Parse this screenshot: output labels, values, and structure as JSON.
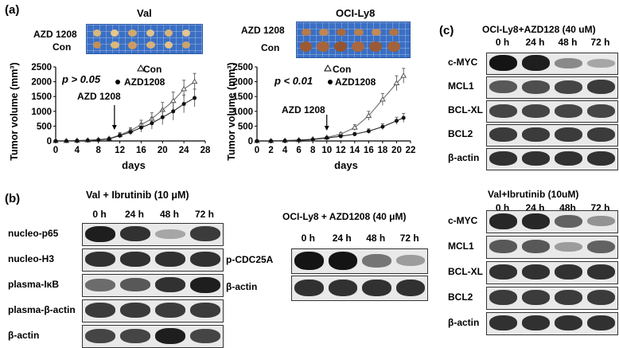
{
  "panel_labels": {
    "a": "(a)",
    "b": "(b)",
    "c": "(c)"
  },
  "panel_a": {
    "charts": [
      {
        "cell_line": "Val",
        "photo_labels": [
          "AZD 1208",
          "Con"
        ],
        "pvalue_text": "p > 0.05",
        "legend": [
          "Con",
          "AZD1208"
        ],
        "annotation": "AZD 1208",
        "ylabel": "Tumor volume (mm³)",
        "xlabel": "days"
      },
      {
        "cell_line": "OCI-Ly8",
        "photo_labels": [
          "AZD 1208",
          "Con"
        ],
        "pvalue_text": "p < 0.01",
        "legend": [
          "Con",
          "AZD1208"
        ],
        "annotation": "AZD 1208",
        "ylabel": "Tumor volume (mm³)",
        "xlabel": "days"
      }
    ]
  },
  "chart_data": [
    {
      "type": "line",
      "title": "Val",
      "xlabel": "days",
      "ylabel": "Tumor volume (mm³)",
      "x_ticks": [
        0,
        4,
        8,
        12,
        16,
        20,
        24,
        28
      ],
      "y_ticks": [
        0,
        500,
        1000,
        1500,
        2000,
        2500
      ],
      "xlim": [
        0,
        28
      ],
      "ylim": [
        0,
        2500
      ],
      "annotation": {
        "text": "AZD 1208",
        "x": 11
      },
      "series": [
        {
          "name": "Con",
          "marker": "triangle-open",
          "x": [
            0,
            2,
            4,
            6,
            8,
            10,
            12,
            14,
            16,
            18,
            20,
            22,
            24,
            26
          ],
          "y": [
            0,
            0,
            10,
            20,
            40,
            80,
            200,
            350,
            550,
            750,
            1050,
            1350,
            1750,
            2000
          ],
          "err": [
            0,
            0,
            5,
            10,
            15,
            30,
            80,
            100,
            150,
            200,
            250,
            300,
            300,
            280
          ]
        },
        {
          "name": "AZD1208",
          "marker": "circle-filled",
          "x": [
            0,
            2,
            4,
            6,
            8,
            10,
            12,
            14,
            16,
            18,
            20,
            22,
            24,
            26
          ],
          "y": [
            0,
            0,
            10,
            20,
            35,
            70,
            180,
            300,
            450,
            600,
            800,
            1000,
            1250,
            1450
          ],
          "err": [
            0,
            0,
            5,
            10,
            15,
            30,
            80,
            100,
            150,
            200,
            250,
            300,
            300,
            300
          ]
        }
      ]
    },
    {
      "type": "line",
      "title": "OCI-Ly8",
      "xlabel": "days",
      "ylabel": "Tumor volume (mm³)",
      "x_ticks": [
        0,
        2,
        4,
        6,
        8,
        10,
        12,
        14,
        16,
        18,
        20,
        22
      ],
      "y_ticks": [
        0,
        500,
        1000,
        1500,
        2000,
        2500
      ],
      "xlim": [
        0,
        22
      ],
      "ylim": [
        0,
        2500
      ],
      "annotation": {
        "text": "AZD 1208",
        "x": 10
      },
      "series": [
        {
          "name": "Con",
          "marker": "triangle-open",
          "x": [
            0,
            2,
            4,
            6,
            8,
            10,
            12,
            14,
            16,
            18,
            20,
            21
          ],
          "y": [
            0,
            0,
            10,
            30,
            60,
            120,
            230,
            450,
            850,
            1400,
            1950,
            2200
          ],
          "err": [
            0,
            0,
            5,
            10,
            20,
            30,
            50,
            100,
            150,
            200,
            250,
            250
          ]
        },
        {
          "name": "AZD1208",
          "marker": "circle-filled",
          "x": [
            0,
            2,
            4,
            6,
            8,
            10,
            12,
            14,
            16,
            18,
            20,
            21
          ],
          "y": [
            0,
            0,
            10,
            25,
            50,
            100,
            160,
            230,
            330,
            480,
            680,
            780
          ],
          "err": [
            0,
            0,
            5,
            10,
            20,
            30,
            40,
            60,
            80,
            100,
            120,
            150
          ]
        }
      ]
    }
  ],
  "panel_b": {
    "left": {
      "title": "Val + Ibrutinib (10 μM)",
      "timepoints": [
        "0 h",
        "24 h",
        "48 h",
        "72 h"
      ],
      "rows": [
        {
          "label": "nucleo-p65",
          "intensity": [
            0.9,
            0.8,
            0.2,
            0.75
          ]
        },
        {
          "label": "nucleo-H3",
          "intensity": [
            0.8,
            0.8,
            0.8,
            0.8
          ]
        },
        {
          "label": "plasma-IκB",
          "intensity": [
            0.5,
            0.6,
            0.8,
            0.9
          ]
        },
        {
          "label": "plasma-β-actin",
          "intensity": [
            0.75,
            0.75,
            0.75,
            0.75
          ]
        },
        {
          "label": "β-actin",
          "intensity": [
            0.7,
            0.7,
            0.9,
            0.7
          ]
        }
      ]
    },
    "middle": {
      "title": "OCI-Ly8 + AZD1208 (40 μM)",
      "timepoints": [
        "0 h",
        "24 h",
        "48 h",
        "72 h"
      ],
      "rows": [
        {
          "label": "p-CDC25A",
          "intensity": [
            0.95,
            0.95,
            0.45,
            0.25
          ]
        },
        {
          "label": "β-actin",
          "intensity": [
            0.8,
            0.8,
            0.8,
            0.8
          ]
        }
      ]
    }
  },
  "panel_c": {
    "top": {
      "title": "OCI-Ly8+AZD128 (40 uM)",
      "timepoints": [
        "0 h",
        "24 h",
        "48 h",
        "72 h"
      ],
      "rows": [
        {
          "label": "c-MYC",
          "intensity": [
            0.95,
            0.9,
            0.35,
            0.2
          ]
        },
        {
          "label": "MCL1",
          "intensity": [
            0.6,
            0.65,
            0.7,
            0.75
          ]
        },
        {
          "label": "BCL-XL",
          "intensity": [
            0.7,
            0.7,
            0.7,
            0.7
          ]
        },
        {
          "label": "BCL2",
          "intensity": [
            0.75,
            0.75,
            0.75,
            0.75
          ]
        },
        {
          "label": "β-actin",
          "intensity": [
            0.8,
            0.8,
            0.8,
            0.8
          ]
        }
      ]
    },
    "bottom": {
      "title": "Val+Ibrutinib (10uM)",
      "timepoints": [
        "0 h",
        "24 h",
        "48h",
        "72 h"
      ],
      "rows": [
        {
          "label": "c-MYC",
          "intensity": [
            0.85,
            0.85,
            0.55,
            0.3
          ]
        },
        {
          "label": "MCL1",
          "intensity": [
            0.6,
            0.6,
            0.25,
            0.55
          ]
        },
        {
          "label": "BCL-XL",
          "intensity": [
            0.8,
            0.8,
            0.8,
            0.8
          ]
        },
        {
          "label": "BCL2",
          "intensity": [
            0.75,
            0.75,
            0.75,
            0.75
          ]
        },
        {
          "label": "β-actin",
          "intensity": [
            0.8,
            0.8,
            0.8,
            0.8
          ]
        }
      ]
    }
  }
}
